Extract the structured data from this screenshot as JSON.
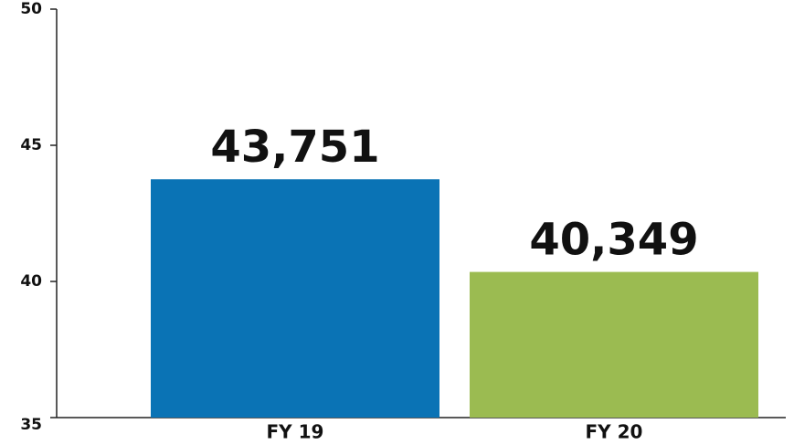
{
  "chart_data": {
    "type": "bar",
    "categories": [
      "FY 19",
      "FY 20"
    ],
    "values": [
      43.751,
      40.349
    ],
    "value_labels": [
      "43,751",
      "40,349"
    ],
    "colors": [
      "#0a73b5",
      "#9bbb51"
    ],
    "ylim": [
      35,
      50
    ],
    "yticks": [
      35,
      40,
      45,
      50
    ],
    "grid": false
  }
}
